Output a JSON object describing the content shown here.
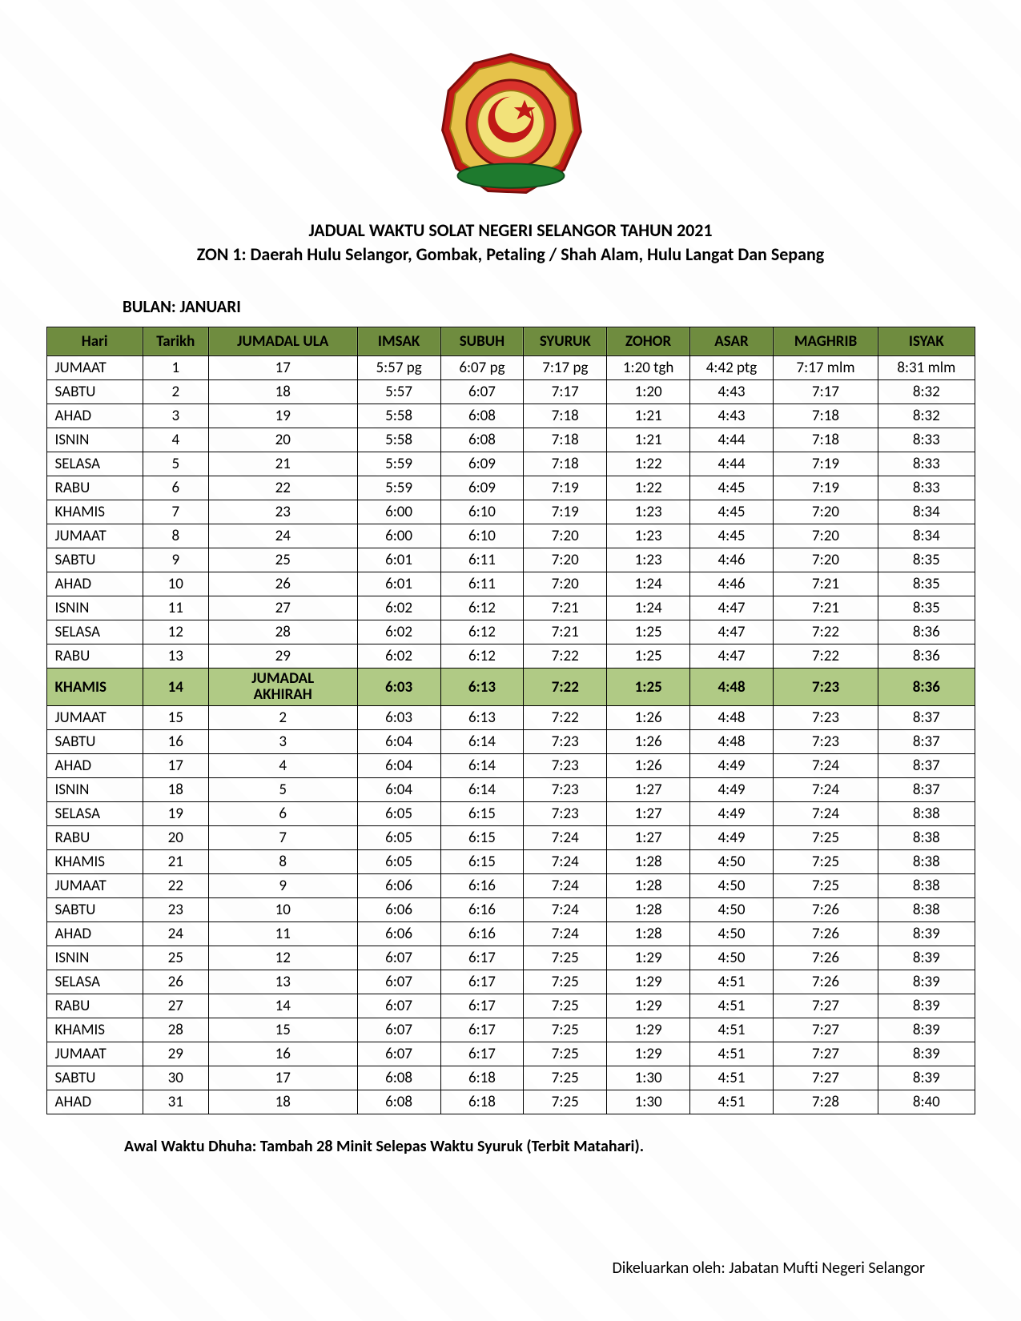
{
  "title_line1": "JADUAL WAKTU SOLAT NEGERI SELANGOR TAHUN 2021",
  "title_line2": "ZON 1: Daerah Hulu Selangor, Gombak, Petaling / Shah Alam, Hulu Langat Dan Sepang",
  "month_label": "BULAN: JANUARI",
  "note": "Awal Waktu Dhuha: Tambah 28 Minit Selepas Waktu Syuruk (Terbit Matahari).",
  "footer": "Dikeluarkan oleh: Jabatan Mufti Negeri Selangor",
  "colors": {
    "header_bg": "#6f8c3f",
    "highlight_bg": "#b0ca85",
    "border": "#000000",
    "text": "#000000",
    "page_bg": "#ffffff"
  },
  "columns": [
    "Hari",
    "Tarikh",
    "JUMADAL ULA",
    "IMSAK",
    "SUBUH",
    "SYURUK",
    "ZOHOR",
    "ASAR",
    "MAGHRIB",
    "ISYAK"
  ],
  "rows": [
    {
      "hari": "JUMAAT",
      "tarikh": "1",
      "hijri": "17",
      "imsak": "5:57 pg",
      "subuh": "6:07 pg",
      "syuruk": "7:17 pg",
      "zohor": "1:20 tgh",
      "asar": "4:42 ptg",
      "maghrib": "7:17 mlm",
      "isyak": "8:31 mlm"
    },
    {
      "hari": "SABTU",
      "tarikh": "2",
      "hijri": "18",
      "imsak": "5:57",
      "subuh": "6:07",
      "syuruk": "7:17",
      "zohor": "1:20",
      "asar": "4:43",
      "maghrib": "7:17",
      "isyak": "8:32"
    },
    {
      "hari": "AHAD",
      "tarikh": "3",
      "hijri": "19",
      "imsak": "5:58",
      "subuh": "6:08",
      "syuruk": "7:18",
      "zohor": "1:21",
      "asar": "4:43",
      "maghrib": "7:18",
      "isyak": "8:32"
    },
    {
      "hari": "ISNIN",
      "tarikh": "4",
      "hijri": "20",
      "imsak": "5:58",
      "subuh": "6:08",
      "syuruk": "7:18",
      "zohor": "1:21",
      "asar": "4:44",
      "maghrib": "7:18",
      "isyak": "8:33"
    },
    {
      "hari": "SELASA",
      "tarikh": "5",
      "hijri": "21",
      "imsak": "5:59",
      "subuh": "6:09",
      "syuruk": "7:18",
      "zohor": "1:22",
      "asar": "4:44",
      "maghrib": "7:19",
      "isyak": "8:33"
    },
    {
      "hari": "RABU",
      "tarikh": "6",
      "hijri": "22",
      "imsak": "5:59",
      "subuh": "6:09",
      "syuruk": "7:19",
      "zohor": "1:22",
      "asar": "4:45",
      "maghrib": "7:19",
      "isyak": "8:33"
    },
    {
      "hari": "KHAMIS",
      "tarikh": "7",
      "hijri": "23",
      "imsak": "6:00",
      "subuh": "6:10",
      "syuruk": "7:19",
      "zohor": "1:23",
      "asar": "4:45",
      "maghrib": "7:20",
      "isyak": "8:34"
    },
    {
      "hari": "JUMAAT",
      "tarikh": "8",
      "hijri": "24",
      "imsak": "6:00",
      "subuh": "6:10",
      "syuruk": "7:20",
      "zohor": "1:23",
      "asar": "4:45",
      "maghrib": "7:20",
      "isyak": "8:34"
    },
    {
      "hari": "SABTU",
      "tarikh": "9",
      "hijri": "25",
      "imsak": "6:01",
      "subuh": "6:11",
      "syuruk": "7:20",
      "zohor": "1:23",
      "asar": "4:46",
      "maghrib": "7:20",
      "isyak": "8:35"
    },
    {
      "hari": "AHAD",
      "tarikh": "10",
      "hijri": "26",
      "imsak": "6:01",
      "subuh": "6:11",
      "syuruk": "7:20",
      "zohor": "1:24",
      "asar": "4:46",
      "maghrib": "7:21",
      "isyak": "8:35"
    },
    {
      "hari": "ISNIN",
      "tarikh": "11",
      "hijri": "27",
      "imsak": "6:02",
      "subuh": "6:12",
      "syuruk": "7:21",
      "zohor": "1:24",
      "asar": "4:47",
      "maghrib": "7:21",
      "isyak": "8:35"
    },
    {
      "hari": "SELASA",
      "tarikh": "12",
      "hijri": "28",
      "imsak": "6:02",
      "subuh": "6:12",
      "syuruk": "7:21",
      "zohor": "1:25",
      "asar": "4:47",
      "maghrib": "7:22",
      "isyak": "8:36"
    },
    {
      "hari": "RABU",
      "tarikh": "13",
      "hijri": "29",
      "imsak": "6:02",
      "subuh": "6:12",
      "syuruk": "7:22",
      "zohor": "1:25",
      "asar": "4:47",
      "maghrib": "7:22",
      "isyak": "8:36"
    },
    {
      "hari": "KHAMIS",
      "tarikh": "14",
      "hijri": "JUMADAL AKHIRAH",
      "imsak": "6:03",
      "subuh": "6:13",
      "syuruk": "7:22",
      "zohor": "1:25",
      "asar": "4:48",
      "maghrib": "7:23",
      "isyak": "8:36",
      "highlight": true,
      "hijri_multiline": true
    },
    {
      "hari": "JUMAAT",
      "tarikh": "15",
      "hijri": "2",
      "imsak": "6:03",
      "subuh": "6:13",
      "syuruk": "7:22",
      "zohor": "1:26",
      "asar": "4:48",
      "maghrib": "7:23",
      "isyak": "8:37"
    },
    {
      "hari": "SABTU",
      "tarikh": "16",
      "hijri": "3",
      "imsak": "6:04",
      "subuh": "6:14",
      "syuruk": "7:23",
      "zohor": "1:26",
      "asar": "4:48",
      "maghrib": "7:23",
      "isyak": "8:37"
    },
    {
      "hari": "AHAD",
      "tarikh": "17",
      "hijri": "4",
      "imsak": "6:04",
      "subuh": "6:14",
      "syuruk": "7:23",
      "zohor": "1:26",
      "asar": "4:49",
      "maghrib": "7:24",
      "isyak": "8:37"
    },
    {
      "hari": "ISNIN",
      "tarikh": "18",
      "hijri": "5",
      "imsak": "6:04",
      "subuh": "6:14",
      "syuruk": "7:23",
      "zohor": "1:27",
      "asar": "4:49",
      "maghrib": "7:24",
      "isyak": "8:37"
    },
    {
      "hari": "SELASA",
      "tarikh": "19",
      "hijri": "6",
      "imsak": "6:05",
      "subuh": "6:15",
      "syuruk": "7:23",
      "zohor": "1:27",
      "asar": "4:49",
      "maghrib": "7:24",
      "isyak": "8:38"
    },
    {
      "hari": "RABU",
      "tarikh": "20",
      "hijri": "7",
      "imsak": "6:05",
      "subuh": "6:15",
      "syuruk": "7:24",
      "zohor": "1:27",
      "asar": "4:49",
      "maghrib": "7:25",
      "isyak": "8:38"
    },
    {
      "hari": "KHAMIS",
      "tarikh": "21",
      "hijri": "8",
      "imsak": "6:05",
      "subuh": "6:15",
      "syuruk": "7:24",
      "zohor": "1:28",
      "asar": "4:50",
      "maghrib": "7:25",
      "isyak": "8:38"
    },
    {
      "hari": "JUMAAT",
      "tarikh": "22",
      "hijri": "9",
      "imsak": "6:06",
      "subuh": "6:16",
      "syuruk": "7:24",
      "zohor": "1:28",
      "asar": "4:50",
      "maghrib": "7:25",
      "isyak": "8:38"
    },
    {
      "hari": "SABTU",
      "tarikh": "23",
      "hijri": "10",
      "imsak": "6:06",
      "subuh": "6:16",
      "syuruk": "7:24",
      "zohor": "1:28",
      "asar": "4:50",
      "maghrib": "7:26",
      "isyak": "8:38"
    },
    {
      "hari": "AHAD",
      "tarikh": "24",
      "hijri": "11",
      "imsak": "6:06",
      "subuh": "6:16",
      "syuruk": "7:24",
      "zohor": "1:28",
      "asar": "4:50",
      "maghrib": "7:26",
      "isyak": "8:39"
    },
    {
      "hari": "ISNIN",
      "tarikh": "25",
      "hijri": "12",
      "imsak": "6:07",
      "subuh": "6:17",
      "syuruk": "7:25",
      "zohor": "1:29",
      "asar": "4:50",
      "maghrib": "7:26",
      "isyak": "8:39"
    },
    {
      "hari": "SELASA",
      "tarikh": "26",
      "hijri": "13",
      "imsak": "6:07",
      "subuh": "6:17",
      "syuruk": "7:25",
      "zohor": "1:29",
      "asar": "4:51",
      "maghrib": "7:26",
      "isyak": "8:39"
    },
    {
      "hari": "RABU",
      "tarikh": "27",
      "hijri": "14",
      "imsak": "6:07",
      "subuh": "6:17",
      "syuruk": "7:25",
      "zohor": "1:29",
      "asar": "4:51",
      "maghrib": "7:27",
      "isyak": "8:39"
    },
    {
      "hari": "KHAMIS",
      "tarikh": "28",
      "hijri": "15",
      "imsak": "6:07",
      "subuh": "6:17",
      "syuruk": "7:25",
      "zohor": "1:29",
      "asar": "4:51",
      "maghrib": "7:27",
      "isyak": "8:39"
    },
    {
      "hari": "JUMAAT",
      "tarikh": "29",
      "hijri": "16",
      "imsak": "6:07",
      "subuh": "6:17",
      "syuruk": "7:25",
      "zohor": "1:29",
      "asar": "4:51",
      "maghrib": "7:27",
      "isyak": "8:39"
    },
    {
      "hari": "SABTU",
      "tarikh": "30",
      "hijri": "17",
      "imsak": "6:08",
      "subuh": "6:18",
      "syuruk": "7:25",
      "zohor": "1:30",
      "asar": "4:51",
      "maghrib": "7:27",
      "isyak": "8:39"
    },
    {
      "hari": "AHAD",
      "tarikh": "31",
      "hijri": "18",
      "imsak": "6:08",
      "subuh": "6:18",
      "syuruk": "7:25",
      "zohor": "1:30",
      "asar": "4:51",
      "maghrib": "7:28",
      "isyak": "8:40"
    }
  ]
}
